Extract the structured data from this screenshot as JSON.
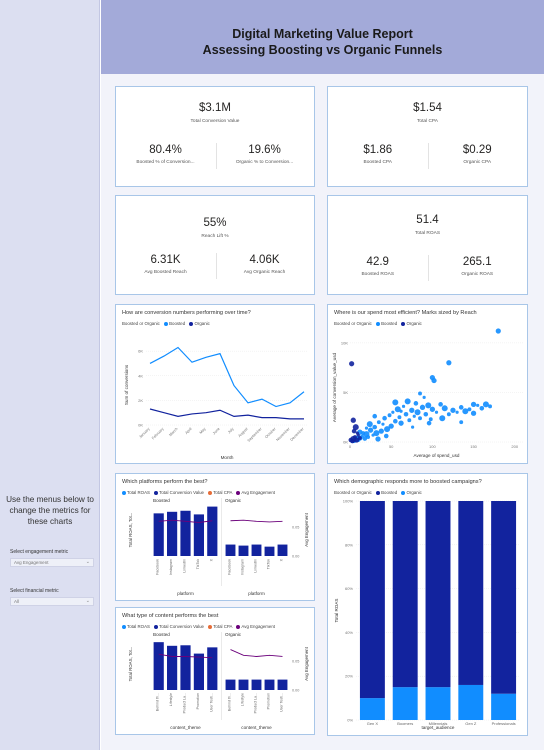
{
  "header": {
    "title_line1": "Digital Marketing Value Report",
    "title_line2": "Assessing Boosting vs Organic Funnels"
  },
  "sidebar": {
    "help_text": "Use the menus below to change the metrics for these charts",
    "engagement_label": "Select engagement metric",
    "engagement_value": "Avg Engagement",
    "financial_label": "Select financial metric",
    "financial_value": "All"
  },
  "kpis": {
    "conversion": {
      "main_value": "$3.1M",
      "main_label": "Total Conversion Value",
      "left_value": "80.4%",
      "left_label": "Boosted % of Conversion...",
      "right_value": "19.6%",
      "right_label": "Organic % to Conversion..."
    },
    "cpa": {
      "main_value": "$1.54",
      "main_label": "Total CPA",
      "left_value": "$1.86",
      "left_label": "Boosted CPA",
      "right_value": "$0.29",
      "right_label": "Organic CPA"
    },
    "reach": {
      "main_value": "55%",
      "main_label": "Reach Lift %",
      "left_value": "6.31K",
      "left_label": "Avg Boosted Reach",
      "right_value": "4.06K",
      "right_label": "Avg Organic Reach"
    },
    "roas": {
      "main_value": "51.4",
      "main_label": "Total ROAS",
      "left_value": "42.9",
      "left_label": "Boosted ROAS",
      "right_value": "265.1",
      "right_label": "Organic ROAS"
    }
  },
  "colors": {
    "boosted": "#12239e",
    "organic": "#118dff",
    "roas": "#118dff",
    "conversion": "#12239e",
    "cpa": "#e66c37",
    "engagement": "#6b007b"
  },
  "charts": {
    "line": {
      "title": "How are conversion numbers performing over time?",
      "legend_title": "Boosted or Organic",
      "legend_boosted": "Boosted",
      "legend_organic": "Organic",
      "xlabel": "Month",
      "ylabel": "Sum of conversions"
    },
    "scatter": {
      "title": "Where is our spend most efficient? Marks sized by Reach",
      "legend_title": "Boosted or Organic",
      "legend_boosted": "Boosted",
      "legend_organic": "Organic",
      "xlabel": "Average of spend_usd",
      "ylabel": "Average of conversion_value_usd"
    },
    "platform": {
      "title": "Which platforms perform the best?",
      "legend_roas": "Total ROAS",
      "legend_conv": "Total Conversion Value",
      "legend_cpa": "Total CPA",
      "legend_eng": "Avg Engagement",
      "panel_boosted": "Boosted",
      "panel_organic": "Organic",
      "xlabel": "platform",
      "ylabel_left": "Total ROAS, Tot...",
      "ylabel_right": "Avg Engagement"
    },
    "content": {
      "title": "What type of content performs the best",
      "legend_roas": "Total ROAS",
      "legend_conv": "Total Conversion Value",
      "legend_cpa": "Total CPA",
      "legend_eng": "Avg Engagement",
      "panel_boosted": "Boosted",
      "panel_organic": "Organic",
      "xlabel": "content_theme",
      "ylabel_left": "Total ROAS, Tot...",
      "ylabel_right": "Avg Engagement"
    },
    "demo": {
      "title": "Which demographic responds more to boosted campaigns?",
      "legend_title": "Boosted or Organic",
      "legend_boosted": "Boosted",
      "legend_organic": "Organic",
      "xlabel": "target_audience",
      "ylabel": "Total ROAS"
    }
  },
  "chart_data": [
    {
      "type": "line",
      "title": "How are conversion numbers performing over time?",
      "xlabel": "Month",
      "ylabel": "Sum of conversions",
      "categories": [
        "January",
        "February",
        "March",
        "April",
        "May",
        "June",
        "July",
        "August",
        "September",
        "October",
        "November",
        "December"
      ],
      "yticks": [
        "0K",
        "2K",
        "4K",
        "6K"
      ],
      "ylim": [
        0,
        6500
      ],
      "series": [
        {
          "name": "Organic",
          "values": [
            5000,
            5600,
            6300,
            5100,
            5500,
            5800,
            3200,
            1800,
            2100,
            1500,
            1800,
            2700
          ]
        },
        {
          "name": "Boosted",
          "values": [
            1300,
            1000,
            700,
            900,
            1000,
            1200,
            700,
            800,
            600,
            600,
            500,
            500
          ]
        }
      ]
    },
    {
      "type": "scatter",
      "title": "Where is our spend most efficient? Marks sized by Reach",
      "xlabel": "Average of spend_usd",
      "ylabel": "Average of conversion_value_usd",
      "xticks": [
        "0",
        "50",
        "100",
        "150",
        "200"
      ],
      "yticks": [
        "0K",
        "5K",
        "10K"
      ],
      "xlim": [
        0,
        210
      ],
      "ylim": [
        0,
        11000
      ],
      "series": [
        {
          "name": "Organic",
          "points": [
            [
              3,
              50
            ],
            [
              5,
              120
            ],
            [
              8,
              300
            ],
            [
              10,
              200
            ],
            [
              12,
              400
            ],
            [
              15,
              600
            ],
            [
              18,
              350
            ],
            [
              20,
              800
            ],
            [
              22,
              500
            ],
            [
              25,
              1200
            ],
            [
              28,
              700
            ],
            [
              30,
              1500
            ],
            [
              32,
              900
            ],
            [
              35,
              2000
            ],
            [
              38,
              1100
            ],
            [
              40,
              1800
            ],
            [
              42,
              2400
            ],
            [
              45,
              1300
            ],
            [
              48,
              2700
            ],
            [
              50,
              1600
            ],
            [
              52,
              3000
            ],
            [
              55,
              2100
            ],
            [
              58,
              3300
            ],
            [
              60,
              2500
            ],
            [
              62,
              1900
            ],
            [
              65,
              3600
            ],
            [
              68,
              2800
            ],
            [
              70,
              4100
            ],
            [
              72,
              2200
            ],
            [
              75,
              3200
            ],
            [
              78,
              2600
            ],
            [
              80,
              3900
            ],
            [
              82,
              3000
            ],
            [
              85,
              2400
            ],
            [
              88,
              3500
            ],
            [
              90,
              4500
            ],
            [
              92,
              2800
            ],
            [
              95,
              3700
            ],
            [
              98,
              2300
            ],
            [
              100,
              3300
            ],
            [
              105,
              3000
            ],
            [
              110,
              3800
            ],
            [
              115,
              3400
            ],
            [
              120,
              2800
            ],
            [
              125,
              3200
            ],
            [
              130,
              3000
            ],
            [
              135,
              3500
            ],
            [
              140,
              3100
            ],
            [
              145,
              3300
            ],
            [
              150,
              2900
            ],
            [
              155,
              3700
            ],
            [
              160,
              3400
            ],
            [
              165,
              3800
            ],
            [
              170,
              3600
            ],
            [
              100,
              6500
            ],
            [
              102,
              6200
            ],
            [
              120,
              8000
            ],
            [
              180,
              11200
            ],
            [
              135,
              2000
            ],
            [
              12,
              1000
            ],
            [
              20,
              1400
            ],
            [
              30,
              2600
            ],
            [
              55,
              4000
            ],
            [
              85,
              4900
            ],
            [
              150,
              3800
            ],
            [
              62,
              3100
            ],
            [
              44,
              600
            ],
            [
              24,
              1800
            ],
            [
              16,
              900
            ],
            [
              34,
              300
            ],
            [
              76,
              1500
            ],
            [
              96,
              1900
            ],
            [
              112,
              2400
            ]
          ]
        },
        {
          "name": "Boosted",
          "points": [
            [
              2,
              7900
            ],
            [
              3,
              100
            ],
            [
              4,
              300
            ],
            [
              6,
              500
            ],
            [
              8,
              200
            ],
            [
              10,
              700
            ],
            [
              5,
              1100
            ],
            [
              7,
              1500
            ],
            [
              12,
              400
            ],
            [
              4,
              2200
            ],
            [
              9,
              900
            ],
            [
              1,
              200
            ]
          ]
        }
      ]
    },
    {
      "type": "bar",
      "title": "Which platforms perform the best?",
      "panels": [
        "Boosted",
        "Organic"
      ],
      "categories": [
        "Facebook",
        "Instagram",
        "LinkedIn",
        "TikTok",
        "X"
      ],
      "series": [
        {
          "name": "Boosted Total ROAS",
          "values": [
            0.82,
            0.85,
            0.87,
            0.8,
            0.95
          ]
        },
        {
          "name": "Boosted Avg Engagement",
          "values": [
            0.06,
            0.062,
            0.06,
            0.058,
            0.061
          ]
        },
        {
          "name": "Organic Total ROAS",
          "values": [
            0.22,
            0.2,
            0.22,
            0.18,
            0.22
          ]
        },
        {
          "name": "Organic Avg Engagement",
          "values": [
            0.061,
            0.062,
            0.06,
            0.059,
            0.06
          ]
        }
      ],
      "right_ticks": [
        "0.00",
        "0.05"
      ]
    },
    {
      "type": "bar",
      "title": "What type of content performs the best",
      "panels": [
        "Boosted",
        "Organic"
      ],
      "categories": [
        "Behind th...",
        "Lifestyle",
        "Product La...",
        "Promotion",
        "User Testi..."
      ],
      "series": [
        {
          "name": "Boosted Total ROAS",
          "values": [
            0.92,
            0.85,
            0.86,
            0.7,
            0.82
          ]
        },
        {
          "name": "Boosted Avg Engagement",
          "values": [
            0.062,
            0.058,
            0.058,
            0.057,
            0.056
          ]
        },
        {
          "name": "Organic Total ROAS",
          "values": [
            0.2,
            0.2,
            0.2,
            0.2,
            0.2
          ]
        },
        {
          "name": "Organic Avg Engagement",
          "values": [
            0.07,
            0.06,
            0.058,
            0.06,
            0.058
          ]
        }
      ],
      "right_ticks": [
        "0.00",
        "0.05"
      ]
    },
    {
      "type": "bar",
      "title": "Which demographic responds more to boosted campaigns?",
      "xlabel": "target_audience",
      "ylabel": "Total ROAS",
      "categories": [
        "Gen X",
        "Boomers",
        "Millennials",
        "Gen Z",
        "Professionals"
      ],
      "yticks": [
        "0%",
        "20%",
        "40%",
        "60%",
        "80%",
        "100%"
      ],
      "series": [
        {
          "name": "Organic",
          "values": [
            10,
            15,
            15,
            16,
            12
          ]
        },
        {
          "name": "Boosted",
          "values": [
            90,
            85,
            85,
            84,
            88
          ]
        }
      ]
    }
  ]
}
